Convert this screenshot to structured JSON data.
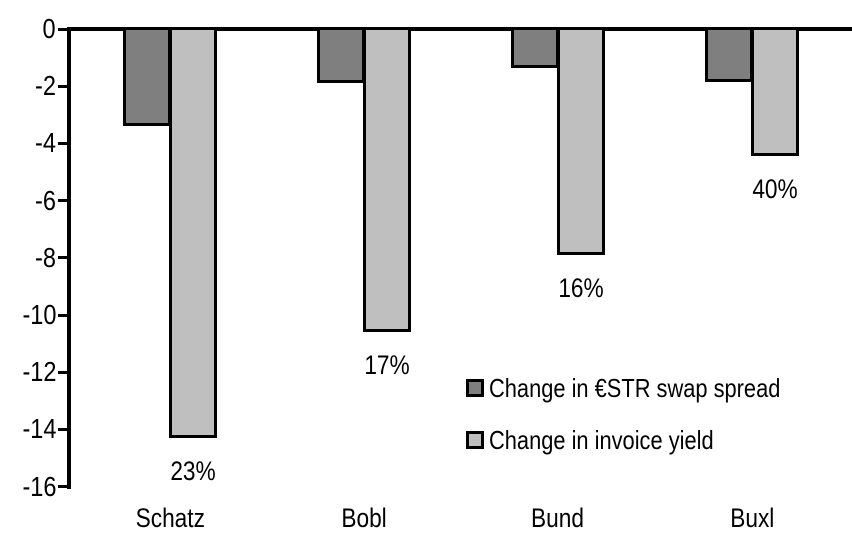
{
  "chart_data": {
    "type": "bar",
    "orientation": "vertical-negative",
    "categories": [
      "Schatz",
      "Bobl",
      "Bund",
      "Buxl"
    ],
    "series": [
      {
        "name": "Change in €STR swap spread",
        "color": "#7F7F7F",
        "values": [
          -3.3,
          -1.8,
          -1.25,
          -1.75
        ]
      },
      {
        "name": "Change in invoice yield",
        "color": "#BFBFBF",
        "values": [
          -14.2,
          -10.5,
          -7.8,
          -4.35
        ],
        "data_labels": [
          "23%",
          "17%",
          "16%",
          "40%"
        ]
      }
    ],
    "ylim": [
      -16,
      0
    ],
    "y_ticks": [
      0,
      -2,
      -4,
      -6,
      -8,
      -10,
      -12,
      -14,
      -16
    ],
    "grid": false,
    "legend_position": "inside-center-right",
    "axis_color": "#000000",
    "bar_border_color": "#000000",
    "text_color": "#000000",
    "background_color": "#FFFFFF"
  }
}
